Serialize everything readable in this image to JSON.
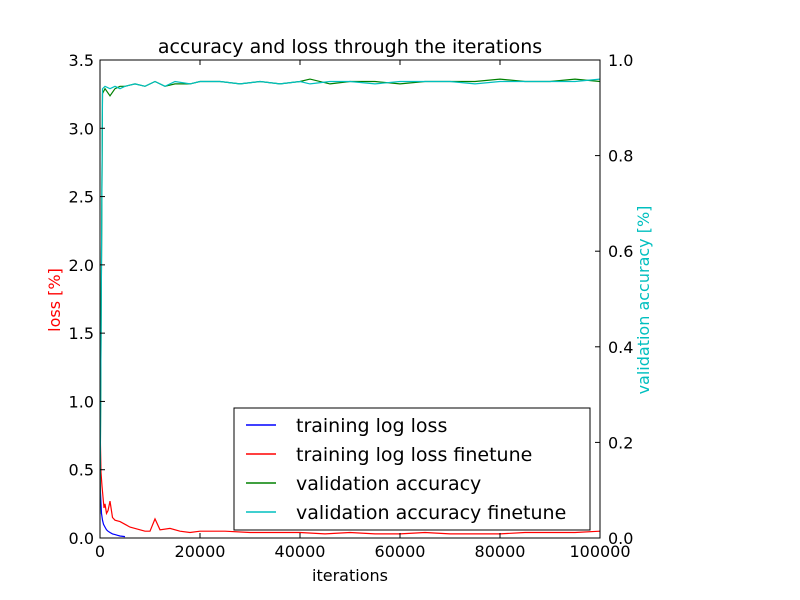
{
  "chart_data": {
    "type": "line",
    "title": "accuracy and loss through the iterations",
    "xlabel": "iterations",
    "ylabel_left": "loss [%]",
    "ylabel_right": "validation accuracy [%]",
    "colors": {
      "left_label": "#ff0000",
      "right_label": "#00bfbf"
    },
    "xlim": [
      0,
      100000
    ],
    "ylim_left": [
      0,
      3.5
    ],
    "ylim_right": [
      0,
      1.0
    ],
    "x_ticks": [
      "0",
      "20000",
      "40000",
      "60000",
      "80000",
      "100000"
    ],
    "x_tick_values": [
      0,
      20000,
      40000,
      60000,
      80000,
      100000
    ],
    "y_left_ticks": [
      "0.0",
      "0.5",
      "1.0",
      "1.5",
      "2.0",
      "2.5",
      "3.0",
      "3.5"
    ],
    "y_left_tick_values": [
      0,
      0.5,
      1.0,
      1.5,
      2.0,
      2.5,
      3.0,
      3.5
    ],
    "y_right_ticks": [
      "0.0",
      "0.2",
      "0.4",
      "0.6",
      "0.8",
      "1.0"
    ],
    "y_right_tick_values": [
      0,
      0.2,
      0.4,
      0.6,
      0.8,
      1.0
    ],
    "legend_position": "lower-right",
    "series": [
      {
        "name": "training log loss",
        "axis": "left",
        "color": "#0000ff",
        "x": [
          0,
          100,
          200,
          300,
          500,
          700,
          1000,
          1300,
          1600,
          2000,
          2500,
          3000,
          3500,
          4000,
          5000
        ],
        "y": [
          0.42,
          0.33,
          0.25,
          0.18,
          0.13,
          0.1,
          0.08,
          0.06,
          0.05,
          0.04,
          0.03,
          0.025,
          0.02,
          0.015,
          0.01
        ]
      },
      {
        "name": "training log loss finetune",
        "axis": "left",
        "color": "#ff0000",
        "x": [
          0,
          200,
          400,
          600,
          800,
          1000,
          1300,
          1600,
          2000,
          2500,
          3000,
          4000,
          5000,
          6000,
          7000,
          8000,
          9000,
          10000,
          11000,
          12000,
          14000,
          16000,
          18000,
          20000,
          25000,
          30000,
          35000,
          40000,
          45000,
          50000,
          55000,
          60000,
          65000,
          70000,
          75000,
          80000,
          85000,
          90000,
          95000,
          100000
        ],
        "y": [
          0.85,
          0.48,
          0.38,
          0.3,
          0.22,
          0.25,
          0.18,
          0.2,
          0.27,
          0.15,
          0.13,
          0.12,
          0.1,
          0.08,
          0.07,
          0.06,
          0.05,
          0.05,
          0.14,
          0.06,
          0.07,
          0.05,
          0.04,
          0.05,
          0.05,
          0.04,
          0.04,
          0.04,
          0.03,
          0.04,
          0.03,
          0.03,
          0.04,
          0.03,
          0.03,
          0.03,
          0.04,
          0.04,
          0.04,
          0.05
        ]
      },
      {
        "name": "validation accuracy",
        "axis": "right",
        "color": "#008000",
        "x": [
          0,
          500,
          1000,
          2000,
          3000,
          4000,
          5000,
          7000,
          9000,
          11000,
          13000,
          15000,
          18000,
          20000,
          24000,
          28000,
          32000,
          36000,
          40000,
          42000,
          46000,
          50000,
          55000,
          60000,
          65000,
          70000,
          75000,
          80000,
          85000,
          90000,
          95000,
          100000
        ],
        "y": [
          0.05,
          0.93,
          0.94,
          0.925,
          0.94,
          0.945,
          0.945,
          0.95,
          0.945,
          0.955,
          0.945,
          0.95,
          0.95,
          0.955,
          0.955,
          0.95,
          0.955,
          0.95,
          0.955,
          0.96,
          0.95,
          0.955,
          0.955,
          0.95,
          0.955,
          0.955,
          0.955,
          0.96,
          0.955,
          0.955,
          0.96,
          0.955
        ]
      },
      {
        "name": "validation accuracy finetune",
        "axis": "right",
        "color": "#00bfbf",
        "x": [
          0,
          500,
          1000,
          2000,
          3000,
          4000,
          5000,
          7000,
          9000,
          11000,
          13000,
          15000,
          18000,
          20000,
          24000,
          28000,
          32000,
          36000,
          40000,
          42000,
          46000,
          50000,
          55000,
          60000,
          65000,
          70000,
          75000,
          80000,
          85000,
          90000,
          95000,
          100000
        ],
        "y": [
          0.05,
          0.94,
          0.945,
          0.94,
          0.945,
          0.94,
          0.945,
          0.95,
          0.945,
          0.955,
          0.945,
          0.955,
          0.95,
          0.955,
          0.955,
          0.95,
          0.955,
          0.95,
          0.955,
          0.95,
          0.955,
          0.955,
          0.95,
          0.955,
          0.955,
          0.955,
          0.95,
          0.955,
          0.955,
          0.955,
          0.955,
          0.96
        ]
      }
    ]
  }
}
